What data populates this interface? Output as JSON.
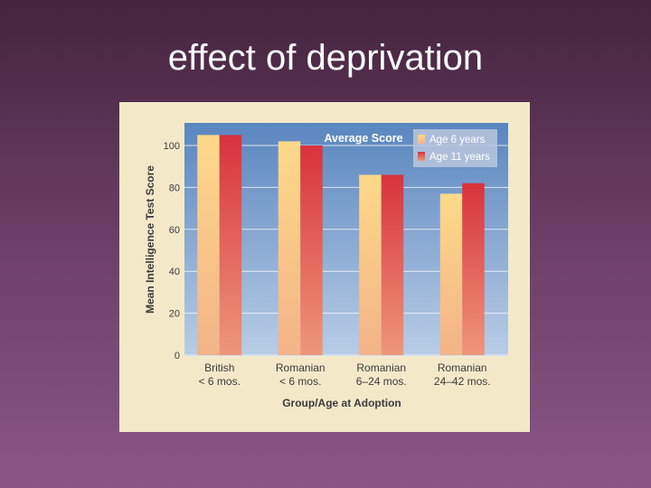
{
  "slide": {
    "title": "effect of deprivation"
  },
  "colors": {
    "plot_top": "#5a86bf",
    "plot_bottom": "#b9cde6",
    "series1_top": "#fdd98a",
    "series1_bottom": "#f3b387",
    "series2_top": "#d8323c",
    "series2_bottom": "#ee977a",
    "panel": "#f3e9c9"
  },
  "chart_data": {
    "type": "bar",
    "title": "Average Score",
    "xlabel": "Group/Age at Adoption",
    "ylabel": "Mean Intelligence Test Score",
    "ylim": [
      0,
      110
    ],
    "yticks": [
      0,
      20,
      40,
      60,
      80,
      100
    ],
    "grid": true,
    "legend_position": "top-right",
    "categories": [
      [
        "British",
        "< 6 mos."
      ],
      [
        "Romanian",
        "< 6 mos."
      ],
      [
        "Romanian",
        "6–24 mos."
      ],
      [
        "Romanian",
        "24–42 mos."
      ]
    ],
    "series": [
      {
        "name": "Age 6 years",
        "values": [
          105,
          102,
          86,
          77
        ]
      },
      {
        "name": "Age 11 years",
        "values": [
          105,
          100,
          86,
          82
        ]
      }
    ]
  }
}
